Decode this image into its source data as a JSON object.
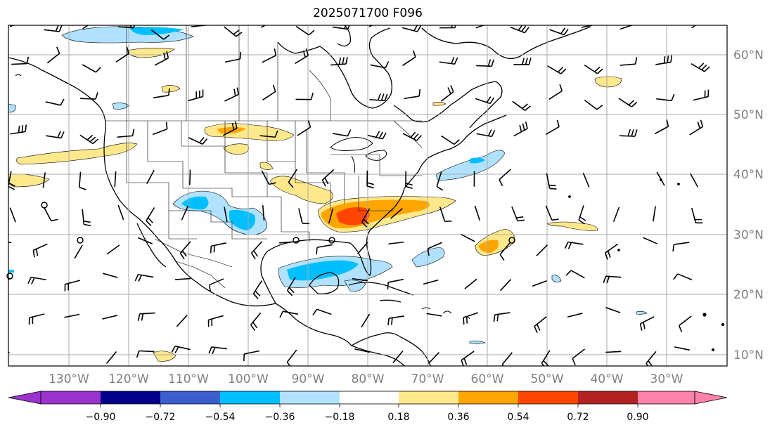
{
  "title": "2025071700 F096",
  "longitude_labels": [
    "130°W",
    "120°W",
    "110°W",
    "100°W",
    "90°W",
    "80°W",
    "70°W",
    "60°W",
    "50°W",
    "40°W",
    "30°W"
  ],
  "latitude_labels": [
    "60°N",
    "50°N",
    "40°N",
    "30°N",
    "20°N",
    "10°N"
  ],
  "colorbar": {
    "tick_labels": [
      "−0.90",
      "−0.72",
      "−0.54",
      "−0.36",
      "−0.18",
      "0.18",
      "0.36",
      "0.54",
      "0.72",
      "0.90"
    ],
    "colors": [
      "#9a32cd",
      "#00008b",
      "#3a5fcd",
      "#00bfff",
      "#b0e2ff",
      "#ffffff",
      "#fee88c",
      "#ffa500",
      "#ff4500",
      "#b22222",
      "#ff82ab"
    ]
  },
  "anomaly_regions": [
    {
      "region": "Southeast US",
      "sign": "positive",
      "max_level": "0.72"
    },
    {
      "region": "Gulf of Mexico",
      "sign": "negative",
      "max_level": "-0.54"
    },
    {
      "region": "Southwest US / Texas",
      "sign": "negative",
      "max_level": "-0.54"
    },
    {
      "region": "Central Plains",
      "sign": "positive",
      "max_level": "0.36"
    },
    {
      "region": "Western Atlantic near 60°W 30°N",
      "sign": "positive",
      "max_level": "0.54"
    }
  ]
}
